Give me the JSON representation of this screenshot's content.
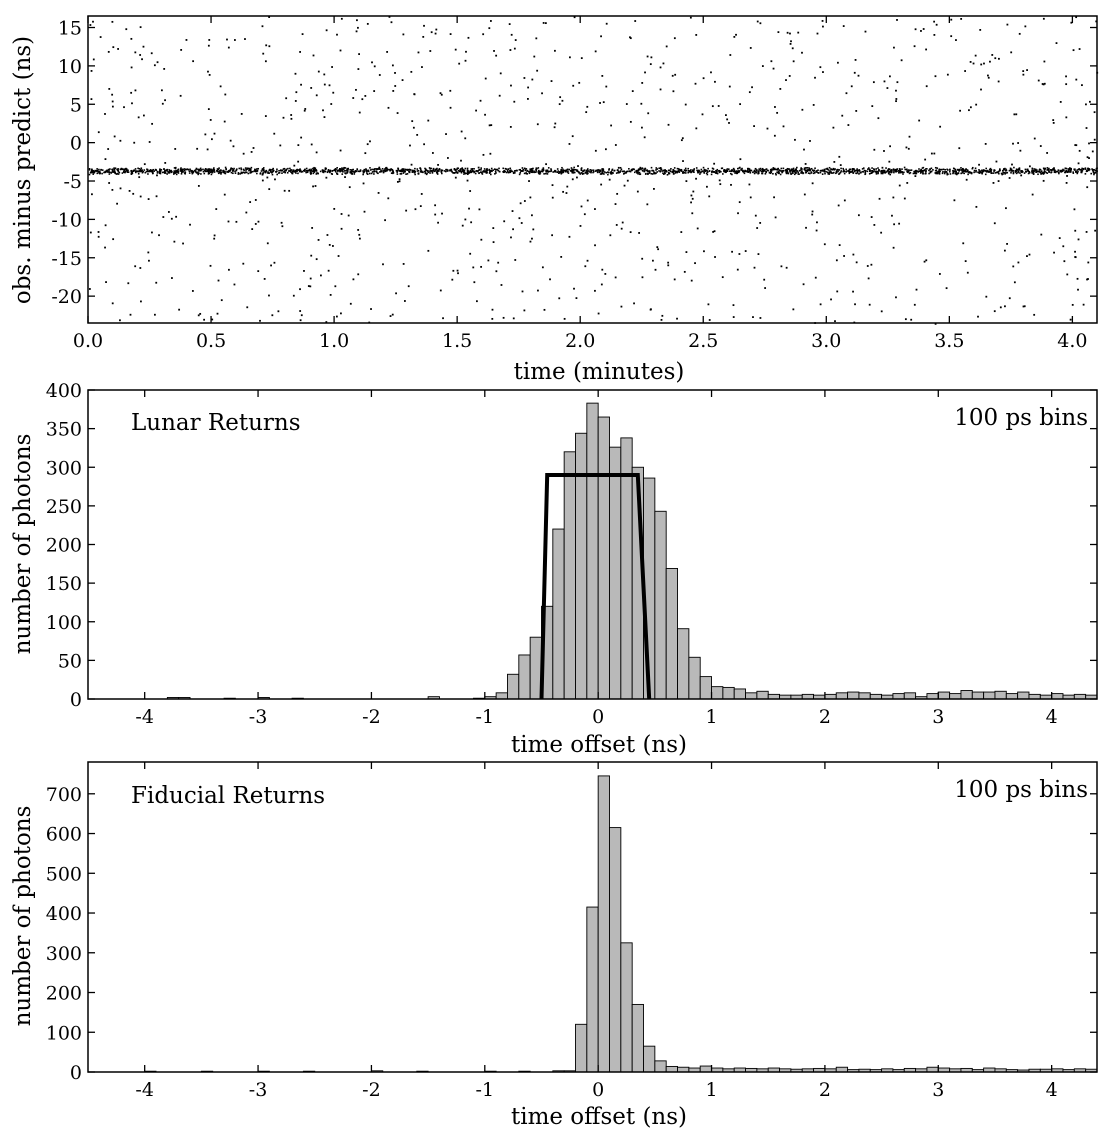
{
  "chart_data": [
    {
      "type": "scatter",
      "xlabel": "time (minutes)",
      "ylabel": "obs. minus predict (ns)",
      "xlim": [
        0.0,
        4.1
      ],
      "ylim": [
        -23.5,
        16.5
      ],
      "x_ticks": [
        0.0,
        0.5,
        1.0,
        1.5,
        2.0,
        2.5,
        3.0,
        3.5,
        4.0
      ],
      "x_tick_labels": [
        "0.0",
        "0.5",
        "1.0",
        "1.5",
        "2.0",
        "2.5",
        "3.0",
        "3.5",
        "4.0"
      ],
      "y_ticks": [
        15,
        10,
        5,
        0,
        -5,
        -10,
        -15,
        -20
      ],
      "y_tick_labels": [
        "15",
        "10",
        "5",
        "0",
        "-5",
        "-10",
        "-15",
        "-20"
      ],
      "signal_band": {
        "center": -3.6,
        "halfwidth": 0.45
      },
      "background": "uniformly scattered points across the full window",
      "grid": false
    },
    {
      "type": "bar",
      "annotation": "Lunar Returns",
      "bin_label": "100 ps bins",
      "xlabel": "time offset (ns)",
      "ylabel": "number of photons",
      "xlim": [
        -4.5,
        4.4
      ],
      "ylim": [
        0,
        400
      ],
      "x_ticks": [
        -4,
        -3,
        -2,
        -1,
        0,
        1,
        2,
        3,
        4
      ],
      "x_tick_labels": [
        "-4",
        "-3",
        "-2",
        "-1",
        "0",
        "1",
        "2",
        "3",
        "4"
      ],
      "y_ticks": [
        0,
        50,
        100,
        150,
        200,
        250,
        300,
        350,
        400
      ],
      "y_tick_labels": [
        "0",
        "50",
        "100",
        "150",
        "200",
        "250",
        "300",
        "350",
        "400"
      ],
      "bin_width": 0.1,
      "bins": [
        [
          -3.8,
          2
        ],
        [
          -3.7,
          2
        ],
        [
          -3.3,
          1
        ],
        [
          -3.0,
          2
        ],
        [
          -2.7,
          1
        ],
        [
          -1.5,
          3
        ],
        [
          -1.1,
          1
        ],
        [
          -1.0,
          3
        ],
        [
          -0.9,
          8
        ],
        [
          -0.8,
          32
        ],
        [
          -0.7,
          57
        ],
        [
          -0.6,
          80
        ],
        [
          -0.5,
          120
        ],
        [
          -0.4,
          220
        ],
        [
          -0.3,
          320
        ],
        [
          -0.2,
          344
        ],
        [
          -0.1,
          383
        ],
        [
          0.0,
          365
        ],
        [
          0.1,
          326
        ],
        [
          0.2,
          338
        ],
        [
          0.3,
          300
        ],
        [
          0.4,
          286
        ],
        [
          0.5,
          243
        ],
        [
          0.6,
          169
        ],
        [
          0.7,
          91
        ],
        [
          0.8,
          54
        ],
        [
          0.9,
          29
        ],
        [
          1.0,
          16
        ],
        [
          1.1,
          15
        ],
        [
          1.2,
          13
        ],
        [
          1.3,
          8
        ],
        [
          1.4,
          10
        ],
        [
          1.5,
          6
        ],
        [
          1.6,
          5
        ],
        [
          1.7,
          5
        ],
        [
          1.8,
          6
        ],
        [
          1.9,
          5
        ],
        [
          2.0,
          6
        ],
        [
          2.1,
          8
        ],
        [
          2.2,
          9
        ],
        [
          2.3,
          8
        ],
        [
          2.4,
          6
        ],
        [
          2.5,
          5
        ],
        [
          2.6,
          7
        ],
        [
          2.7,
          8
        ],
        [
          2.8,
          3
        ],
        [
          2.9,
          7
        ],
        [
          3.0,
          9
        ],
        [
          3.1,
          7
        ],
        [
          3.2,
          11
        ],
        [
          3.3,
          9
        ],
        [
          3.4,
          9
        ],
        [
          3.5,
          10
        ],
        [
          3.6,
          7
        ],
        [
          3.7,
          9
        ],
        [
          3.8,
          6
        ],
        [
          3.9,
          5
        ],
        [
          4.0,
          7
        ],
        [
          4.1,
          5
        ],
        [
          4.2,
          6
        ],
        [
          4.3,
          5
        ]
      ],
      "fit_line": {
        "x": [
          -0.5,
          -0.45,
          0.35,
          0.45
        ],
        "y": [
          0,
          290,
          290,
          0
        ]
      },
      "bar_color": "#b9b9b9",
      "grid": false
    },
    {
      "type": "bar",
      "annotation": "Fiducial Returns",
      "bin_label": "100 ps bins",
      "xlabel": "time offset (ns)",
      "ylabel": "number of photons",
      "xlim": [
        -4.5,
        4.4
      ],
      "ylim": [
        0,
        780
      ],
      "x_ticks": [
        -4,
        -3,
        -2,
        -1,
        0,
        1,
        2,
        3,
        4
      ],
      "x_tick_labels": [
        "-4",
        "-3",
        "-2",
        "-1",
        "0",
        "1",
        "2",
        "3",
        "4"
      ],
      "y_ticks": [
        0,
        100,
        200,
        300,
        400,
        500,
        600,
        700
      ],
      "y_tick_labels": [
        "0",
        "100",
        "200",
        "300",
        "400",
        "500",
        "600",
        "700"
      ],
      "bin_width": 0.1,
      "bins": [
        [
          -4.0,
          2
        ],
        [
          -3.5,
          2
        ],
        [
          -3.0,
          2
        ],
        [
          -2.6,
          2
        ],
        [
          -2.0,
          3
        ],
        [
          -1.6,
          2
        ],
        [
          -1.0,
          2
        ],
        [
          -0.7,
          2
        ],
        [
          -0.4,
          3
        ],
        [
          -0.3,
          3
        ],
        [
          -0.2,
          120
        ],
        [
          -0.1,
          415
        ],
        [
          0.0,
          745
        ],
        [
          0.1,
          615
        ],
        [
          0.2,
          325
        ],
        [
          0.3,
          170
        ],
        [
          0.4,
          65
        ],
        [
          0.5,
          28
        ],
        [
          0.6,
          14
        ],
        [
          0.7,
          12
        ],
        [
          0.8,
          10
        ],
        [
          0.9,
          15
        ],
        [
          1.0,
          10
        ],
        [
          1.1,
          8
        ],
        [
          1.2,
          10
        ],
        [
          1.3,
          9
        ],
        [
          1.4,
          8
        ],
        [
          1.5,
          10
        ],
        [
          1.6,
          8
        ],
        [
          1.7,
          7
        ],
        [
          1.8,
          8
        ],
        [
          1.9,
          9
        ],
        [
          2.0,
          8
        ],
        [
          2.1,
          12
        ],
        [
          2.2,
          6
        ],
        [
          2.3,
          7
        ],
        [
          2.4,
          6
        ],
        [
          2.5,
          8
        ],
        [
          2.6,
          6
        ],
        [
          2.7,
          9
        ],
        [
          2.8,
          8
        ],
        [
          2.9,
          12
        ],
        [
          3.0,
          10
        ],
        [
          3.1,
          8
        ],
        [
          3.2,
          9
        ],
        [
          3.3,
          6
        ],
        [
          3.4,
          10
        ],
        [
          3.5,
          8
        ],
        [
          3.6,
          6
        ],
        [
          3.7,
          5
        ],
        [
          3.8,
          7
        ],
        [
          3.9,
          7
        ],
        [
          4.0,
          8
        ],
        [
          4.1,
          6
        ],
        [
          4.2,
          8
        ],
        [
          4.3,
          7
        ]
      ],
      "bar_color": "#b9b9b9",
      "grid": false
    }
  ]
}
